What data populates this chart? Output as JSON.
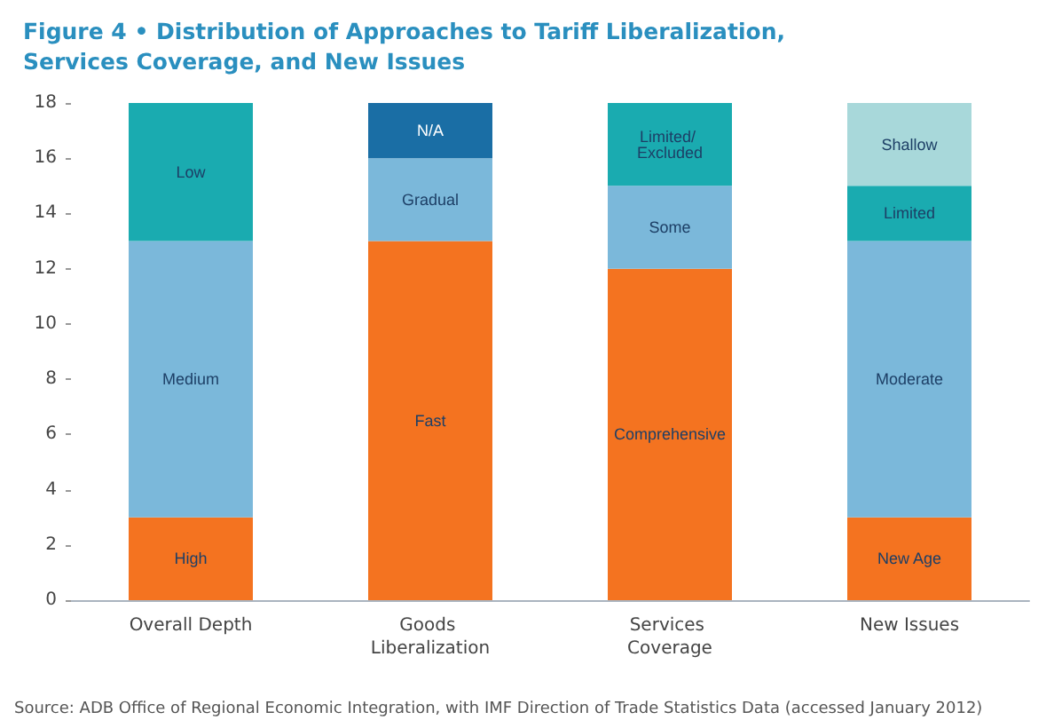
{
  "chart_data": {
    "type": "bar",
    "stacked": true,
    "title": "Figure 4 • Distribution of Approaches to Tariff Liberalization, Services Coverage, and New Issues",
    "categories": [
      "Overall Depth",
      "Goods Liberalization",
      "Services Coverage",
      "New Issues"
    ],
    "series": [
      {
        "colors": [
          "#f47320",
          "#f47320",
          "#f47320",
          "#f47320"
        ],
        "values": [
          3,
          13,
          12,
          3
        ],
        "value_labels": [
          "High",
          "Fast",
          "Comprehensive",
          "New Age"
        ]
      },
      {
        "colors": [
          "#7bb8da",
          "#7bb8da",
          "#7bb8da",
          "#7bb8da"
        ],
        "values": [
          10,
          3,
          3,
          10
        ],
        "value_labels": [
          "Medium",
          "Gradual",
          "Some",
          "Moderate"
        ]
      },
      {
        "colors": [
          "#1aabb0",
          "#1a6ea5",
          "#1aabb0",
          "#1aabb0"
        ],
        "values": [
          5,
          2,
          3,
          2
        ],
        "value_labels": [
          "Low",
          "N/A",
          "Limited/ Excluded",
          "Limited"
        ]
      },
      {
        "colors": [
          "#a8d8da",
          "#a8d8da",
          "#a8d8da",
          "#a8d8da"
        ],
        "values": [
          null,
          null,
          null,
          3
        ],
        "value_labels": [
          null,
          null,
          null,
          "Shallow"
        ]
      }
    ],
    "ylim": [
      0,
      18
    ],
    "yticks": [
      0,
      2,
      4,
      6,
      8,
      10,
      12,
      14,
      16,
      18
    ],
    "grid": false,
    "annotations": [
      "Source: ADB Office of Regional Economic Integration, with IMF Direction of Trade Statistics Data (accessed January 2012)"
    ]
  }
}
